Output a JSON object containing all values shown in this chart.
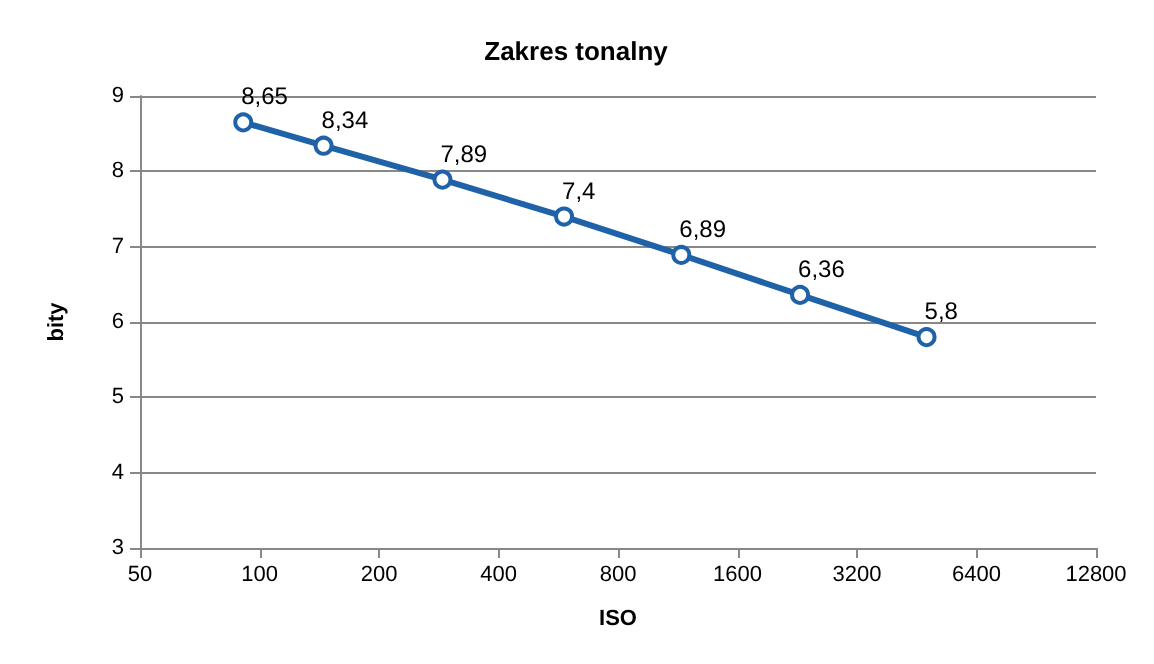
{
  "chart_data": {
    "type": "line",
    "title": "Zakres tonalny",
    "xlabel": "ISO",
    "ylabel": "bity",
    "x": [
      91,
      145,
      289,
      585,
      1155,
      2300,
      4790
    ],
    "series": [
      {
        "color": "#1f62a8",
        "values": [
          8.65,
          8.34,
          7.89,
          7.4,
          6.89,
          6.36,
          5.8
        ],
        "value_labels": [
          "8,65",
          "8,34",
          "7,89",
          "7,4",
          "6,89",
          "6,36",
          "5,8"
        ]
      }
    ],
    "log": "x",
    "xlim": [
      50,
      12800
    ],
    "xticks": [
      50,
      100,
      200,
      400,
      800,
      1600,
      3200,
      6400,
      12800
    ],
    "ylim": [
      3,
      9
    ],
    "yticks": [
      3,
      4,
      5,
      6,
      7,
      8,
      9
    ],
    "grid": "y",
    "marker": "circle",
    "line_style": "solid"
  }
}
